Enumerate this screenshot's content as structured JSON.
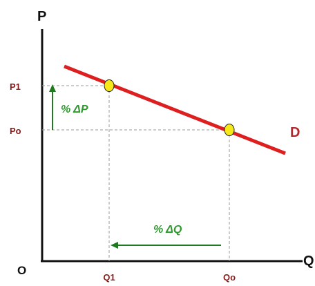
{
  "chart_data": {
    "type": "line",
    "title": "",
    "ylabel": "P",
    "xlabel": "Q",
    "origin_label": "O",
    "x_tick_labels": [
      "Q1",
      "Qo"
    ],
    "y_tick_labels": [
      "P1",
      "Po"
    ],
    "series": [
      {
        "name": "D",
        "points": [
          [
            "Q1",
            "P1"
          ],
          [
            "Qo",
            "Po"
          ]
        ]
      }
    ],
    "annotations": {
      "price_change": "% ΔP",
      "quantity_change": "% ΔQ"
    },
    "grid": false
  },
  "colors": {
    "curve": "#dd1f1f",
    "point": "#f7e81a",
    "arrow": "#1f7a1f",
    "tick_text": "#8b1a1a"
  }
}
